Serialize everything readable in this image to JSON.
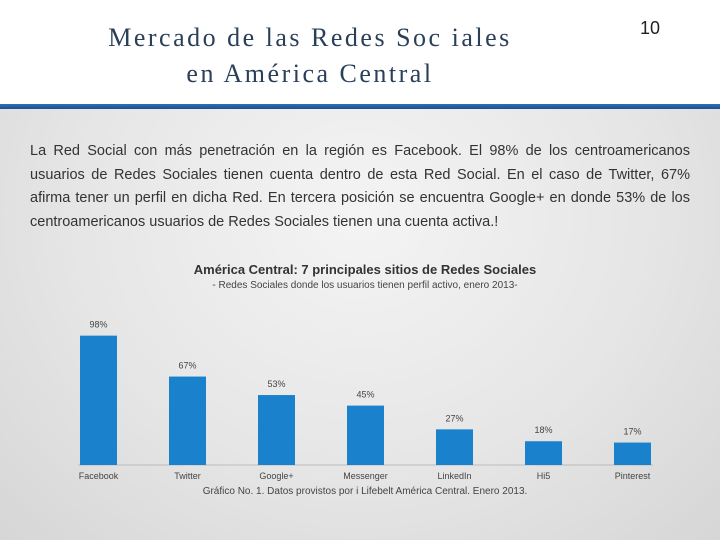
{
  "header": {
    "title_line1": "Mercado de las Redes Soc iales",
    "title_line2": "en América Central",
    "page_number": "10"
  },
  "intro_text": "La Red Social con más penetración en la región es Facebook. El 98% de los centroamericanos usuarios de Redes Sociales tienen cuenta dentro de esta Red Social. En el caso de Twitter, 67% afirma tener un perfil en dicha Red. En tercera posición se encuentra Google+ en donde 53% de los centroamericanos usuarios de Redes Sociales tienen una cuenta activa.!",
  "chart_caption": "Gráfico No. 1. Datos provistos por i Lifebelt América Central. Enero 2013.",
  "colors": {
    "bar": "#1a82cc",
    "header_line": "#2663a6"
  },
  "chart_data": {
    "type": "bar",
    "title": "América Central: 7 principales sitios de Redes Sociales",
    "subtitle": "- Redes Sociales donde los usuarios tienen perfil activo, enero 2013-",
    "categories": [
      "Facebook",
      "Twitter",
      "Google+",
      "Messenger",
      "LinkedIn",
      "Hi5",
      "Pinterest"
    ],
    "values": [
      98,
      67,
      53,
      45,
      27,
      18,
      17
    ],
    "value_labels": [
      "98%",
      "67%",
      "53%",
      "45%",
      "27%",
      "18%",
      "17%"
    ],
    "ylim": [
      0,
      100
    ],
    "grid": false,
    "legend": "none"
  }
}
